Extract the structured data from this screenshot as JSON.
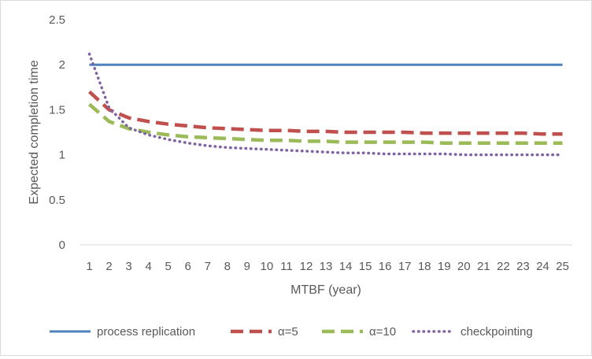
{
  "chart_data": {
    "type": "line",
    "title": "",
    "xlabel": "MTBF (year)",
    "ylabel": "Expected completion time",
    "x": [
      1,
      2,
      3,
      4,
      5,
      6,
      7,
      8,
      9,
      10,
      11,
      12,
      13,
      14,
      15,
      16,
      17,
      18,
      19,
      20,
      21,
      22,
      23,
      24,
      25
    ],
    "xticks": [
      "1",
      "2",
      "3",
      "4",
      "5",
      "6",
      "7",
      "8",
      "9",
      "10",
      "11",
      "12",
      "13",
      "14",
      "15",
      "16",
      "17",
      "18",
      "19",
      "20",
      "21",
      "22",
      "23",
      "24",
      "25"
    ],
    "ylim": [
      0,
      2.5
    ],
    "yticks": [
      "0",
      "0.5",
      "1",
      "1.5",
      "2",
      "2.5"
    ],
    "grid": false,
    "legend_position": "bottom",
    "series": [
      {
        "name": "process replication",
        "color": "#4f81bd",
        "dash": "solid",
        "values": [
          2,
          2,
          2,
          2,
          2,
          2,
          2,
          2,
          2,
          2,
          2,
          2,
          2,
          2,
          2,
          2,
          2,
          2,
          2,
          2,
          2,
          2,
          2,
          2,
          2
        ]
      },
      {
        "name": "α=5",
        "color": "#c0504d",
        "dash": "dash",
        "values": [
          1.7,
          1.5,
          1.41,
          1.37,
          1.34,
          1.32,
          1.3,
          1.29,
          1.28,
          1.27,
          1.27,
          1.26,
          1.26,
          1.25,
          1.25,
          1.25,
          1.25,
          1.24,
          1.24,
          1.24,
          1.24,
          1.24,
          1.24,
          1.23,
          1.23
        ]
      },
      {
        "name": "α=10",
        "color": "#9bbb59",
        "dash": "dash",
        "values": [
          1.56,
          1.37,
          1.29,
          1.25,
          1.22,
          1.2,
          1.19,
          1.18,
          1.17,
          1.16,
          1.16,
          1.15,
          1.15,
          1.14,
          1.14,
          1.14,
          1.14,
          1.14,
          1.13,
          1.13,
          1.13,
          1.13,
          1.13,
          1.13,
          1.13
        ]
      },
      {
        "name": "checkpointing",
        "color": "#8064a2",
        "dash": "dot",
        "values": [
          2.12,
          1.52,
          1.3,
          1.22,
          1.17,
          1.13,
          1.1,
          1.08,
          1.07,
          1.06,
          1.05,
          1.04,
          1.03,
          1.02,
          1.02,
          1.01,
          1.01,
          1.01,
          1.01,
          1.0,
          1.0,
          1.0,
          1.0,
          1.0,
          1.0
        ]
      }
    ]
  }
}
